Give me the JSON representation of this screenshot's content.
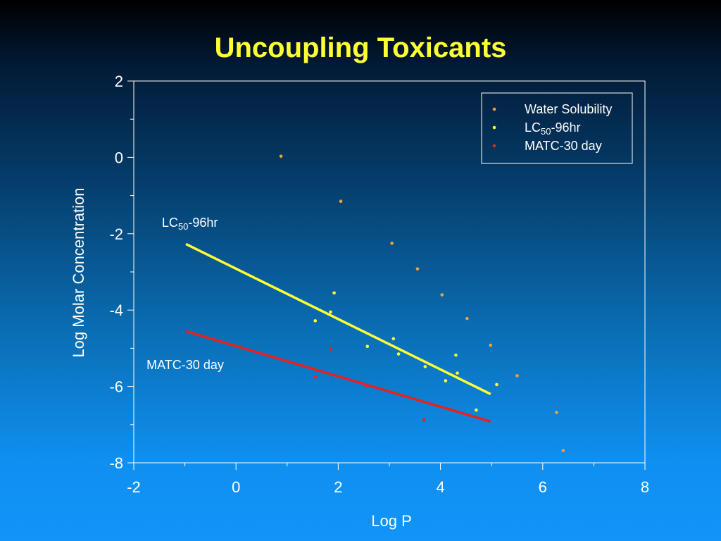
{
  "slide": {
    "title": "Uncoupling Toxicants"
  },
  "chart_data": {
    "type": "scatter",
    "title": "Uncoupling Toxicants",
    "xlabel": "Log P",
    "ylabel": "Log Molar Concentration",
    "xlim": [
      -2,
      8
    ],
    "ylim": [
      -8,
      2
    ],
    "x_ticks": [
      "-2",
      "0",
      "2",
      "4",
      "6",
      "8"
    ],
    "y_ticks": [
      "2",
      "0",
      "-2",
      "-4",
      "-6",
      "-8"
    ],
    "grid": false,
    "legend_position": "top-right",
    "series": [
      {
        "name": "Water Solubility",
        "color": "#f0a040",
        "points": [
          {
            "x": 0.88,
            "y": 0.03
          },
          {
            "x": 2.05,
            "y": -1.15
          },
          {
            "x": 3.05,
            "y": -2.25
          },
          {
            "x": 3.55,
            "y": -2.92
          },
          {
            "x": 4.03,
            "y": -3.6
          },
          {
            "x": 4.52,
            "y": -4.22
          },
          {
            "x": 4.98,
            "y": -4.92
          },
          {
            "x": 5.5,
            "y": -5.72
          },
          {
            "x": 6.27,
            "y": -6.68
          },
          {
            "x": 6.4,
            "y": -7.68
          }
        ]
      },
      {
        "name": "LC<sub>50</sub>-96hr",
        "color": "#ffff33",
        "points": [
          {
            "x": 1.55,
            "y": -4.28
          },
          {
            "x": 1.85,
            "y": -4.05
          },
          {
            "x": 1.92,
            "y": -3.55
          },
          {
            "x": 2.57,
            "y": -4.95
          },
          {
            "x": 3.08,
            "y": -4.75
          },
          {
            "x": 3.18,
            "y": -5.15
          },
          {
            "x": 3.7,
            "y": -5.48
          },
          {
            "x": 4.1,
            "y": -5.85
          },
          {
            "x": 4.3,
            "y": -5.18
          },
          {
            "x": 4.33,
            "y": -5.65
          },
          {
            "x": 4.7,
            "y": -6.62
          },
          {
            "x": 5.1,
            "y": -5.95
          }
        ],
        "fit_line": {
          "x": [
            -0.98,
            4.98
          ],
          "y": [
            -2.27,
            -6.2
          ]
        }
      },
      {
        "name": "MATC-30 day",
        "color": "#e8201e",
        "points": [
          {
            "x": 1.85,
            "y": -5.02
          },
          {
            "x": 1.55,
            "y": -5.75
          },
          {
            "x": 2.55,
            "y": -5.98
          },
          {
            "x": 3.68,
            "y": -6.87
          }
        ],
        "fit_line": {
          "x": [
            -0.98,
            4.98
          ],
          "y": [
            -4.55,
            -6.92
          ]
        }
      }
    ],
    "annotations": [
      {
        "name": "lc50",
        "label": "LC<sub>50</sub>-96hr",
        "base": "LC",
        "sub": "50",
        "suffix": "-96hr",
        "x": -1.45,
        "y": -1.82
      },
      {
        "name": "matc",
        "label": "MATC-30 day",
        "x": -1.75,
        "y": -5.55
      }
    ]
  }
}
